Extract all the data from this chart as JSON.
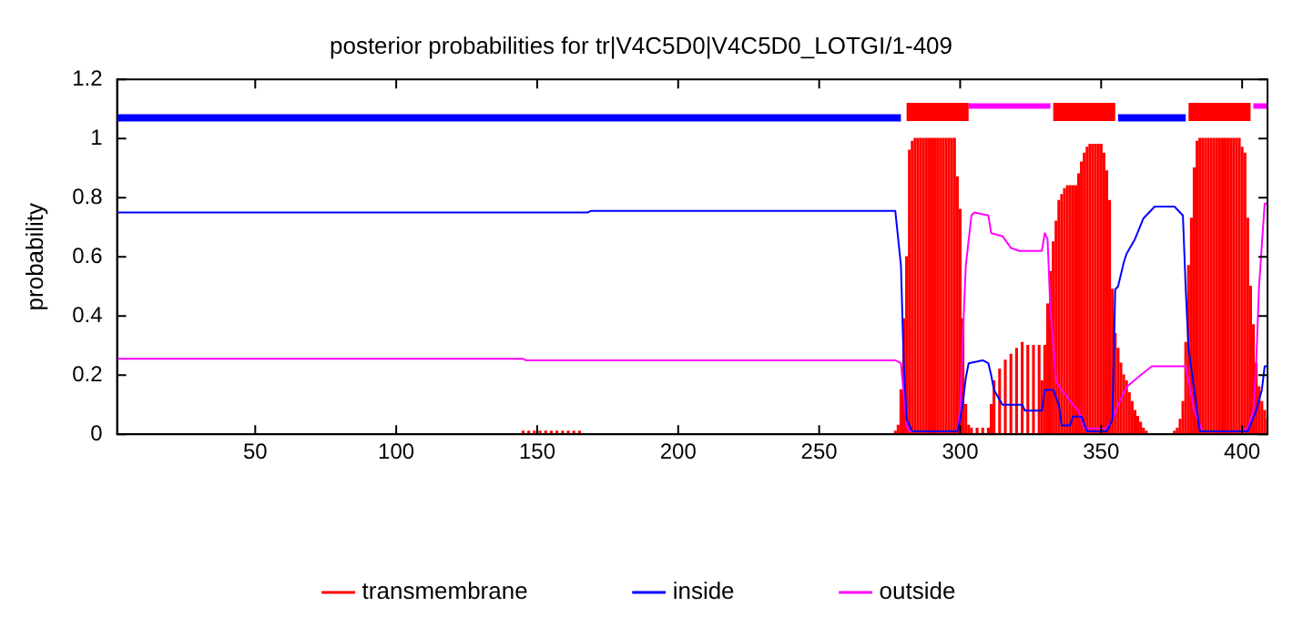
{
  "chart_data": {
    "type": "line",
    "title": "posterior probabilities for tr|V4C5D0|V4C5D0_LOTGI/1-409",
    "ylabel": "probability",
    "xlim": [
      1,
      409
    ],
    "xticks": [
      50,
      100,
      150,
      200,
      250,
      300,
      350,
      400
    ],
    "ylim": [
      0,
      1.2
    ],
    "yticks": [
      0,
      0.2,
      0.4,
      0.6,
      0.8,
      1,
      1.2
    ],
    "grid": false,
    "legend": "bottom",
    "marker": "none",
    "series": [
      {
        "name": "transmembrane",
        "type": "bar",
        "color": "#ff0000",
        "x": [
          145,
          147,
          149,
          151,
          153,
          155,
          157,
          159,
          161,
          163,
          165,
          277,
          278,
          279,
          280,
          281,
          282,
          283,
          284,
          285,
          286,
          287,
          288,
          289,
          290,
          291,
          292,
          293,
          294,
          295,
          296,
          297,
          298,
          299,
          300,
          301,
          302,
          303,
          304,
          306,
          308,
          310,
          311,
          312,
          314,
          316,
          318,
          320,
          322,
          324,
          326,
          328,
          329,
          330,
          331,
          332,
          333,
          334,
          335,
          336,
          337,
          338,
          339,
          340,
          341,
          342,
          343,
          344,
          345,
          346,
          347,
          348,
          349,
          350,
          351,
          352,
          353,
          354,
          355,
          356,
          357,
          358,
          359,
          360,
          361,
          362,
          363,
          364,
          365,
          366,
          376,
          377,
          378,
          379,
          380,
          381,
          382,
          383,
          384,
          385,
          386,
          387,
          388,
          389,
          390,
          391,
          392,
          393,
          394,
          395,
          396,
          397,
          398,
          399,
          400,
          401,
          402,
          403,
          404,
          405,
          406,
          407,
          408,
          409
        ],
        "values": [
          0.01,
          0.01,
          0.01,
          0.01,
          0.01,
          0.01,
          0.01,
          0.01,
          0.01,
          0.01,
          0.01,
          0.01,
          0.03,
          0.15,
          0.39,
          0.6,
          0.96,
          0.99,
          1,
          1,
          1,
          1,
          1,
          1,
          1,
          1,
          1,
          1,
          1,
          1,
          1,
          1,
          1,
          0.87,
          0.76,
          0.39,
          0.1,
          0.03,
          0.02,
          0.02,
          0.02,
          0.02,
          0.1,
          0.18,
          0.22,
          0.25,
          0.27,
          0.29,
          0.31,
          0.3,
          0.3,
          0.3,
          0.18,
          0.3,
          0.44,
          0.55,
          0.65,
          0.72,
          0.79,
          0.81,
          0.83,
          0.84,
          0.84,
          0.84,
          0.84,
          0.88,
          0.92,
          0.95,
          0.97,
          0.98,
          0.98,
          0.98,
          0.98,
          0.98,
          0.95,
          0.89,
          0.79,
          0.49,
          0.34,
          0.29,
          0.24,
          0.2,
          0.18,
          0.14,
          0.11,
          0.08,
          0.06,
          0.04,
          0.02,
          0.01,
          0.01,
          0.02,
          0.05,
          0.11,
          0.31,
          0.57,
          0.73,
          0.9,
          0.99,
          1,
          1,
          1,
          1,
          1,
          1,
          1,
          1,
          1,
          1,
          1,
          1,
          1,
          1,
          1,
          0.97,
          0.95,
          0.73,
          0.5,
          0.37,
          0.24,
          0.16,
          0.11,
          0.08,
          0.05
        ]
      },
      {
        "name": "inside",
        "color": "#0000ff",
        "x": [
          1,
          168,
          169,
          277,
          279,
          280,
          281,
          283,
          299,
          300,
          301,
          302,
          303,
          308,
          310,
          311,
          312,
          315,
          322,
          323,
          329,
          330,
          333,
          335,
          336,
          339,
          340,
          343,
          345,
          352,
          354,
          355,
          356,
          358,
          359,
          362,
          365,
          369,
          376,
          379,
          380,
          381,
          383,
          385,
          402,
          405,
          407,
          408,
          409
        ],
        "values": [
          0.75,
          0.75,
          0.755,
          0.755,
          0.57,
          0.24,
          0.05,
          0.01,
          0.01,
          0.05,
          0.11,
          0.19,
          0.24,
          0.25,
          0.24,
          0.2,
          0.15,
          0.1,
          0.1,
          0.08,
          0.08,
          0.15,
          0.15,
          0.1,
          0.03,
          0.03,
          0.06,
          0.06,
          0.01,
          0.01,
          0.05,
          0.49,
          0.5,
          0.58,
          0.61,
          0.66,
          0.73,
          0.77,
          0.77,
          0.74,
          0.49,
          0.29,
          0.15,
          0.01,
          0.01,
          0.08,
          0.15,
          0.23,
          0.23
        ]
      },
      {
        "name": "outside",
        "color": "#ff00ff",
        "x": [
          1,
          145,
          146,
          277,
          279,
          281,
          282,
          299,
          300,
          301,
          302,
          304,
          305,
          310,
          311,
          315,
          318,
          321,
          329,
          330,
          331,
          332,
          333,
          334,
          336,
          340,
          342,
          344,
          352,
          354,
          356,
          359,
          364,
          368,
          380,
          381,
          383,
          386,
          399,
          402,
          404,
          405,
          406,
          408,
          409
        ],
        "values": [
          0.255,
          0.255,
          0.25,
          0.25,
          0.24,
          0.03,
          0.01,
          0.01,
          0.08,
          0.34,
          0.57,
          0.74,
          0.75,
          0.74,
          0.68,
          0.67,
          0.63,
          0.62,
          0.62,
          0.68,
          0.66,
          0.42,
          0.31,
          0.18,
          0.15,
          0.1,
          0.08,
          0.02,
          0.02,
          0.05,
          0.1,
          0.16,
          0.2,
          0.23,
          0.23,
          0.18,
          0.08,
          0.01,
          0.01,
          0.02,
          0.08,
          0.24,
          0.5,
          0.78,
          0.78
        ]
      },
      {
        "color": "#0000ff",
        "x": [
          1,
          279,
          317,
          356,
          380
        ],
        "values": [
          1.07,
          1.07,
          null,
          1.07,
          1.07
        ]
      },
      {
        "color": "#ff0000",
        "x": [
          281,
          303,
          318,
          333,
          355,
          368,
          381,
          403
        ],
        "values": [
          1.09,
          1.09,
          null,
          1.09,
          1.09,
          null,
          1.09,
          1.09
        ]
      },
      {
        "color": "#ff00ff",
        "x": [
          303,
          332,
          368,
          404,
          409
        ],
        "values": [
          1.11,
          1.11,
          null,
          1.11,
          1.11
        ]
      }
    ]
  }
}
